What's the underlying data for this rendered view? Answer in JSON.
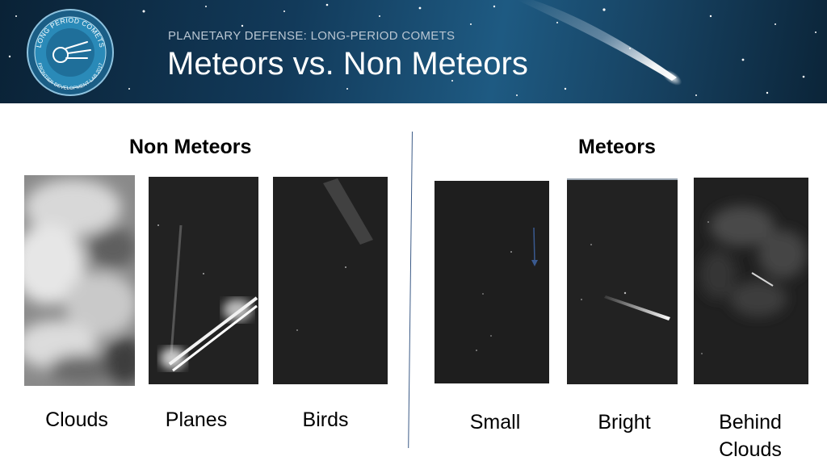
{
  "header": {
    "logo_ring_top": "LONG PERIOD COMETS",
    "logo_ring_bottom": "FRONTIER DEVELOPMENT LAB 2017",
    "subtitle": "PLANETARY DEFENSE: LONG-PERIOD COMETS",
    "title": "Meteors vs. Non Meteors"
  },
  "non_meteors": {
    "heading": "Non Meteors",
    "items": [
      {
        "caption": "Clouds",
        "image": "cloud-cover-image"
      },
      {
        "caption": "Planes",
        "image": "plane-trail-image"
      },
      {
        "caption": "Birds",
        "image": "bird-streak-image"
      }
    ]
  },
  "meteors": {
    "heading": "Meteors",
    "items": [
      {
        "caption": "Small",
        "image": "small-meteor-image"
      },
      {
        "caption": "Bright",
        "image": "bright-meteor-image"
      },
      {
        "caption_line1": "Behind",
        "caption_line2": "Clouds",
        "image": "meteor-behind-clouds-image"
      }
    ]
  },
  "colors": {
    "banner_dark": "#0a2236",
    "banner_light": "#1e5a82",
    "divider": "#3b5a86",
    "frame_bg": "#1e1e1e"
  }
}
